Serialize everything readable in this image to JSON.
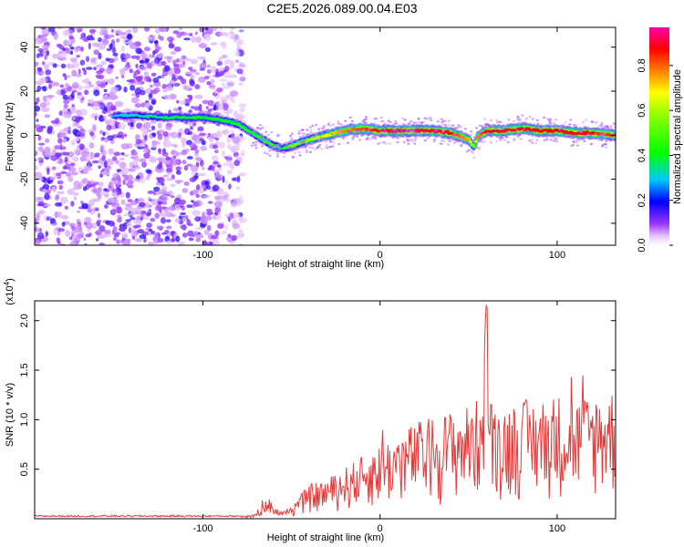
{
  "title": "C2E5.2026.089.00.04.E03",
  "chart_data": [
    {
      "type": "heatmap",
      "xlabel": "Height of straight line (km)",
      "ylabel": "Frequency (Hz)",
      "xlim": [
        -195,
        133
      ],
      "ylim": [
        -50,
        49
      ],
      "xticks": [
        -100,
        0,
        100
      ],
      "xtick_labels": [
        "-100",
        "0",
        "100"
      ],
      "yticks": [
        -40,
        -20,
        0,
        20,
        40
      ],
      "ytick_labels": [
        "-40",
        "-20",
        "0",
        "20",
        "40"
      ],
      "colorbar": {
        "label": "Normalized spectral amplitude",
        "range": [
          0.0,
          0.97
        ],
        "ticks": [
          0.0,
          0.2,
          0.4,
          0.6,
          0.8
        ],
        "tick_labels": [
          "0.0",
          "0.2",
          "0.4",
          "0.6",
          "0.8"
        ]
      },
      "noise_region_x": [
        -195,
        -77
      ],
      "ridge": {
        "x": [
          -150,
          -140,
          -120,
          -100,
          -90,
          -80,
          -70,
          -60,
          -55,
          -50,
          -40,
          -30,
          -20,
          -10,
          0,
          10,
          20,
          30,
          40,
          50,
          53,
          55,
          60,
          70,
          80,
          90,
          100,
          110,
          120,
          133
        ],
        "freq": [
          9,
          9,
          8,
          8,
          7,
          5,
          0,
          -5,
          -6,
          -5,
          -2,
          0,
          2,
          3,
          2,
          2,
          2,
          2,
          1,
          -2,
          -5,
          -1,
          2,
          2,
          3,
          2,
          2,
          1,
          1,
          0
        ],
        "amplitude": [
          0.3,
          0.32,
          0.38,
          0.42,
          0.42,
          0.45,
          0.45,
          0.5,
          0.35,
          0.55,
          0.6,
          0.7,
          0.8,
          0.85,
          0.9,
          0.95,
          0.95,
          0.92,
          0.9,
          0.75,
          0.55,
          0.8,
          0.9,
          0.92,
          0.9,
          0.9,
          0.9,
          0.92,
          0.9,
          0.85
        ]
      }
    },
    {
      "type": "line",
      "xlabel": "Height of straight line (km)",
      "ylabel": "SNR (10 * v/v)",
      "y_multiplier_label": "(x10",
      "y_multiplier_exp": "4",
      "xlim": [
        -195,
        133
      ],
      "ylim": [
        0,
        22000
      ],
      "xticks": [
        -100,
        0,
        100
      ],
      "xtick_labels": [
        "-100",
        "0",
        "100"
      ],
      "yticks": [
        5000,
        10000,
        15000,
        20000
      ],
      "ytick_labels": [
        "0.5",
        "1.0",
        "1.5",
        "2.0"
      ],
      "series": [
        {
          "name": "SNR",
          "color": "#e53a3a",
          "envelope_x": [
            -195,
            -78,
            -70,
            -65,
            -60,
            -55,
            -50,
            -40,
            -30,
            -20,
            -10,
            0,
            10,
            20,
            30,
            40,
            50,
            55,
            58,
            60,
            62,
            70,
            80,
            90,
            100,
            110,
            120,
            133
          ],
          "envelope_y": [
            300,
            300,
            400,
            2400,
            1200,
            600,
            1200,
            3000,
            3500,
            4500,
            5500,
            6500,
            7500,
            8500,
            9000,
            9500,
            10000,
            10500,
            12500,
            22000,
            10500,
            10000,
            10500,
            10500,
            11000,
            10500,
            11000,
            11500
          ]
        }
      ]
    }
  ]
}
